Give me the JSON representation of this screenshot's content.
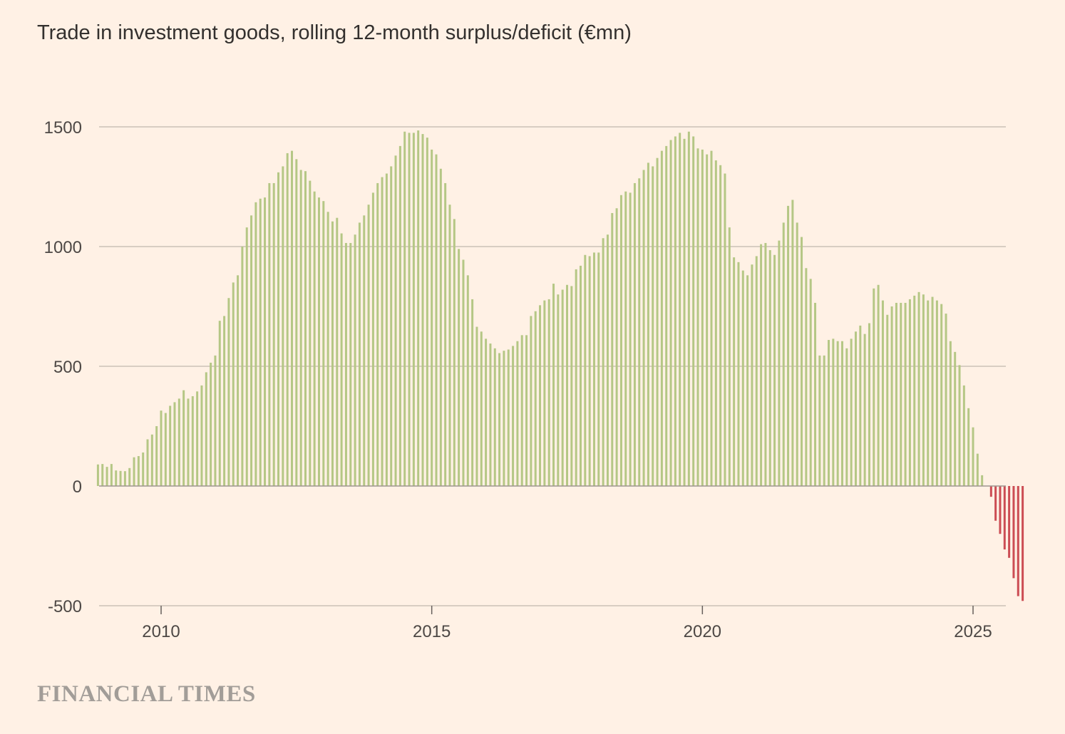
{
  "chart_data": {
    "type": "bar",
    "title": "Trade in investment goods, rolling 12-month surplus/deficit (€mn)",
    "xlabel": "",
    "ylabel": "",
    "x_start": "2008-11",
    "frequency": "monthly",
    "ylim": [
      -500,
      1500
    ],
    "y_ticks": [
      1500,
      1000,
      500,
      0,
      -500
    ],
    "x_ticks": [
      "2010",
      "2015",
      "2020",
      "2025"
    ],
    "grid": true,
    "colors": {
      "positive": "#b5c785",
      "negative": "#cc4d54",
      "grid": "#ccc1b7",
      "zero_line": "#9e9690"
    },
    "values": [
      90,
      92,
      80,
      92,
      65,
      63,
      62,
      75,
      120,
      125,
      140,
      195,
      215,
      250,
      315,
      305,
      335,
      350,
      365,
      400,
      365,
      375,
      395,
      420,
      475,
      515,
      545,
      690,
      710,
      785,
      850,
      880,
      1000,
      1080,
      1130,
      1185,
      1200,
      1205,
      1265,
      1265,
      1310,
      1335,
      1390,
      1400,
      1365,
      1320,
      1315,
      1275,
      1230,
      1205,
      1190,
      1145,
      1105,
      1120,
      1055,
      1015,
      1015,
      1050,
      1100,
      1130,
      1175,
      1225,
      1265,
      1290,
      1305,
      1335,
      1380,
      1420,
      1480,
      1475,
      1475,
      1485,
      1470,
      1455,
      1405,
      1385,
      1325,
      1265,
      1175,
      1115,
      990,
      945,
      880,
      780,
      665,
      645,
      615,
      595,
      575,
      555,
      565,
      570,
      585,
      605,
      630,
      630,
      710,
      730,
      755,
      775,
      780,
      845,
      800,
      820,
      840,
      835,
      905,
      920,
      965,
      960,
      975,
      975,
      1035,
      1050,
      1140,
      1160,
      1215,
      1230,
      1225,
      1265,
      1285,
      1320,
      1350,
      1335,
      1370,
      1400,
      1420,
      1445,
      1460,
      1475,
      1450,
      1480,
      1460,
      1410,
      1405,
      1385,
      1400,
      1360,
      1340,
      1305,
      1080,
      955,
      935,
      900,
      880,
      925,
      960,
      1010,
      1015,
      985,
      965,
      1025,
      1100,
      1170,
      1195,
      1100,
      1040,
      910,
      865,
      765,
      545,
      545,
      610,
      615,
      605,
      605,
      575,
      615,
      645,
      670,
      635,
      680,
      825,
      840,
      775,
      715,
      750,
      765,
      765,
      765,
      780,
      795,
      810,
      800,
      775,
      790,
      775,
      760,
      720,
      605,
      560,
      505,
      420,
      325,
      245,
      135,
      45,
      0,
      -45,
      -145,
      -200,
      -265,
      -300,
      -385,
      -460,
      -480
    ]
  },
  "footer": {
    "brand": "FINANCIAL TIMES"
  }
}
